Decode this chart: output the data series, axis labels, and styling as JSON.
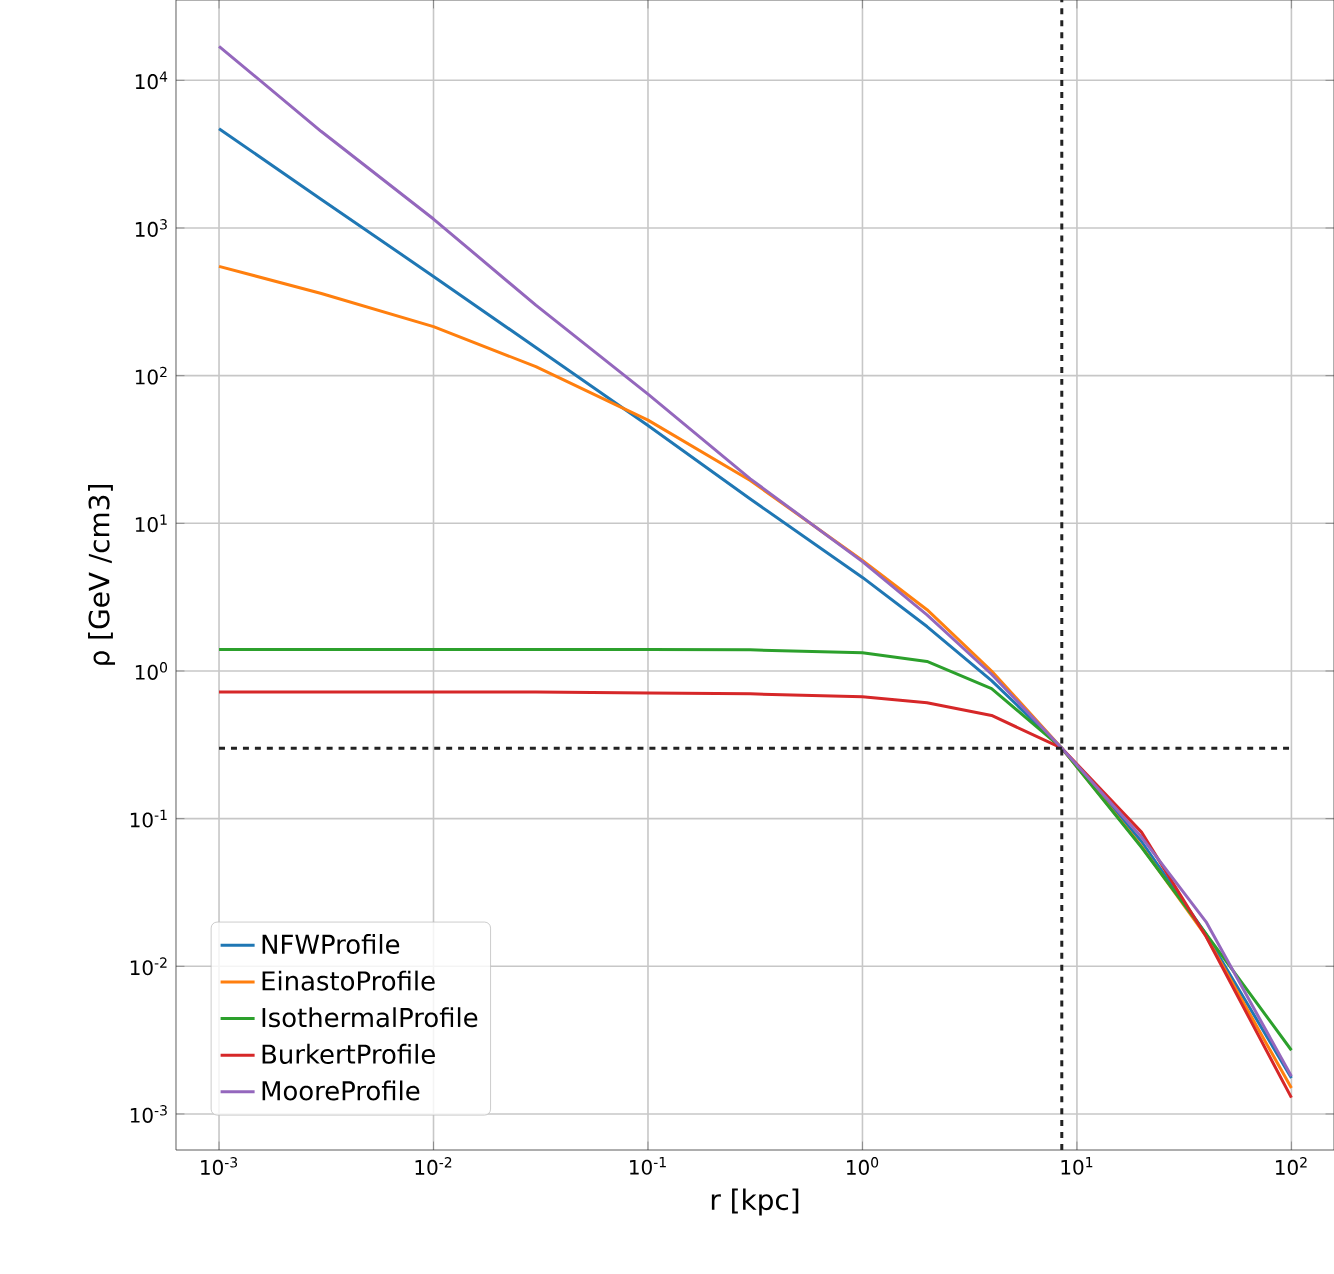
{
  "chart_data": {
    "type": "line",
    "xlabel": "r [kpc]",
    "ylabel": "ρ [GeV /cm3]",
    "x": [
      0.001,
      0.003,
      0.01,
      0.03,
      0.1,
      0.3,
      1,
      2,
      4,
      8.5,
      20,
      40,
      100
    ],
    "series": [
      {
        "name": "NFWProfile",
        "color": "#1f77b4",
        "values": [
          4700,
          1560,
          470,
          155,
          46,
          14.6,
          4.3,
          2.0,
          0.86,
          0.3,
          0.07,
          0.0165,
          0.00175
        ]
      },
      {
        "name": "EinastoProfile",
        "color": "#ff7f0e",
        "values": [
          550,
          360,
          215,
          115,
          50,
          19.5,
          5.6,
          2.6,
          1.0,
          0.3,
          0.065,
          0.016,
          0.0015
        ]
      },
      {
        "name": "IsothermalProfile",
        "color": "#2ca02c",
        "values": [
          1.4,
          1.4,
          1.4,
          1.4,
          1.4,
          1.39,
          1.33,
          1.16,
          0.76,
          0.3,
          0.064,
          0.0166,
          0.0027
        ]
      },
      {
        "name": "BurkertProfile",
        "color": "#d62728",
        "values": [
          0.72,
          0.72,
          0.72,
          0.72,
          0.71,
          0.7,
          0.67,
          0.61,
          0.5,
          0.3,
          0.081,
          0.0159,
          0.00129
        ]
      },
      {
        "name": "MooreProfile",
        "color": "#9467bd",
        "values": [
          17000,
          4500,
          1150,
          300,
          75,
          20,
          5.5,
          2.4,
          0.95,
          0.3,
          0.075,
          0.02,
          0.0018
        ]
      }
    ],
    "log": "xy",
    "grid": true,
    "legend": "bottom left",
    "marker": "none",
    "line_style": "solid",
    "xlim": [
      0.00063,
      158
    ],
    "ylim": [
      0.00057,
      35000
    ],
    "xticks": [
      {
        "value": 0.001,
        "label": "10$^{-3}$"
      },
      {
        "value": 0.01,
        "label": "10$^{-2}$"
      },
      {
        "value": 0.1,
        "label": "10$^{-1}$"
      },
      {
        "value": 1,
        "label": "10$^{0}$"
      },
      {
        "value": 10,
        "label": "10$^{1}$"
      },
      {
        "value": 100,
        "label": "10$^{2}$"
      }
    ],
    "yticks": [
      {
        "value": 0.001,
        "label": "10$^{-3}$"
      },
      {
        "value": 0.01,
        "label": "10$^{-2}$"
      },
      {
        "value": 0.1,
        "label": "10$^{-1}$"
      },
      {
        "value": 1,
        "label": "10$^{0}$"
      },
      {
        "value": 10,
        "label": "10$^{1}$"
      },
      {
        "value": 100,
        "label": "10$^{2}$"
      },
      {
        "value": 1000,
        "label": "10$^{3}$"
      },
      {
        "value": 10000,
        "label": "10$^{4}$"
      }
    ],
    "ref_lines": [
      {
        "axis": "x",
        "value": 8.5,
        "color": "#222222",
        "line_style": "dashed"
      },
      {
        "axis": "y",
        "value": 0.3,
        "color": "#222222",
        "line_style": "dashed"
      }
    ]
  }
}
